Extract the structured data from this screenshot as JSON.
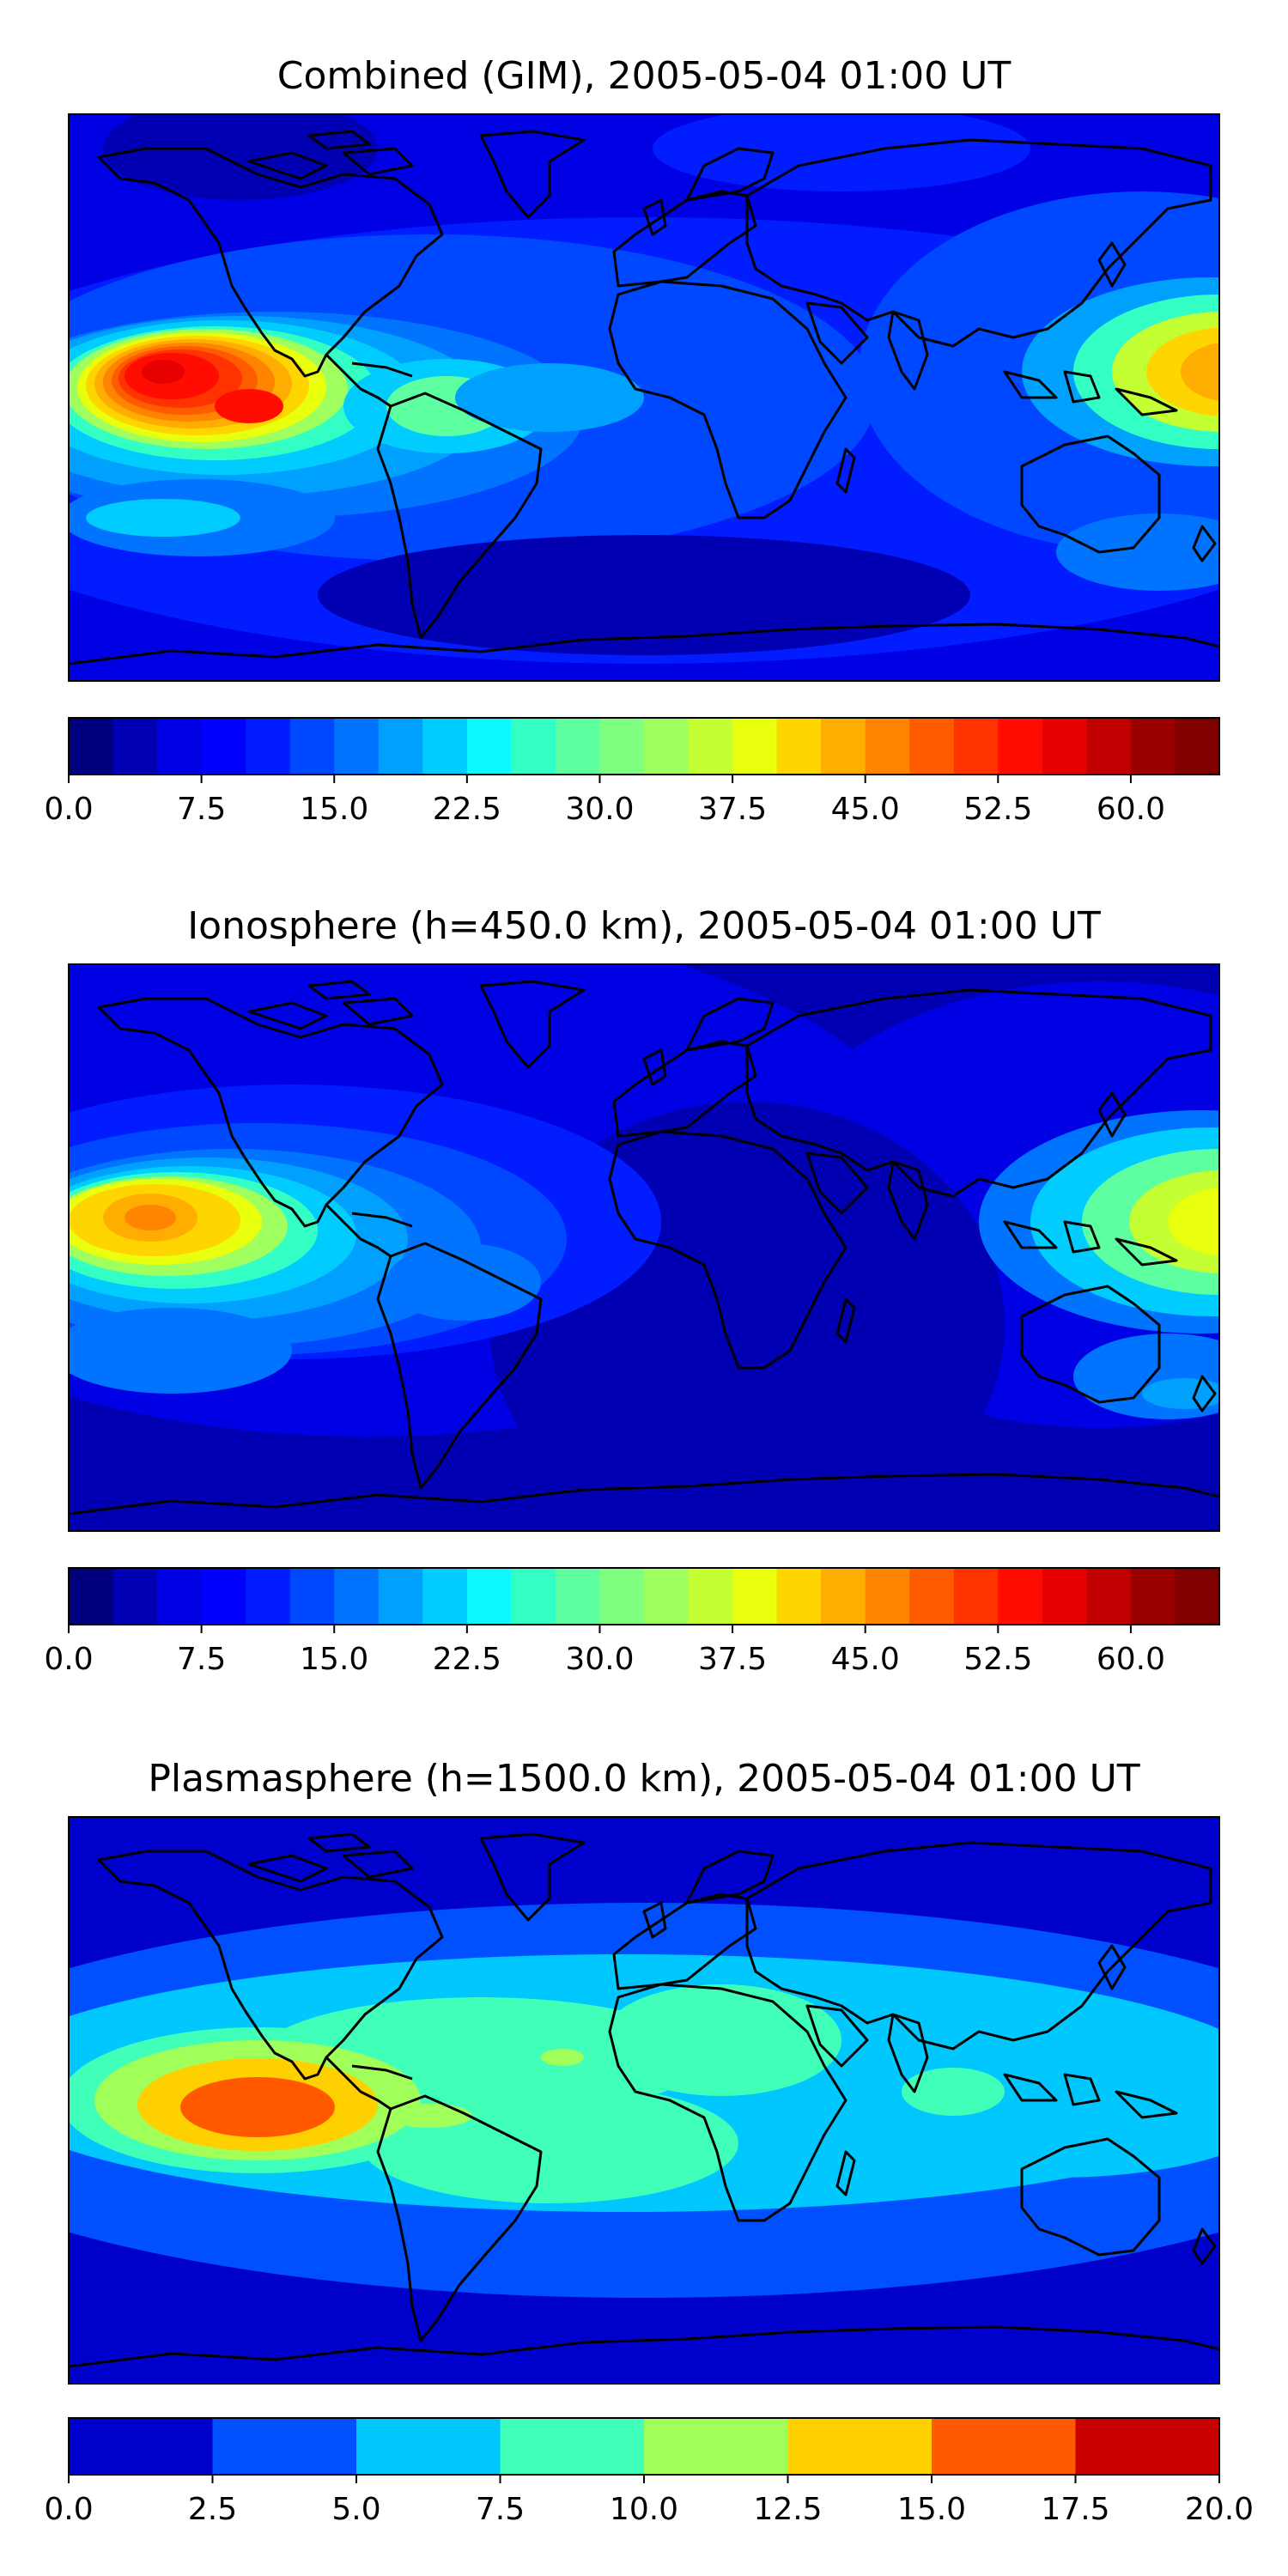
{
  "panels": [
    {
      "title": "Combined (GIM), 2005-05-04 01:00 UT",
      "colorbar": {
        "min": 0,
        "max": 65,
        "levels": 26,
        "ticks": [
          "0.0",
          "7.5",
          "15.0",
          "22.5",
          "30.0",
          "37.5",
          "45.0",
          "52.5",
          "60.0"
        ],
        "tick_values": [
          0,
          7.5,
          15,
          22.5,
          30,
          37.5,
          45,
          52.5,
          60
        ]
      }
    },
    {
      "title": "Ionosphere  (h=450.0 km), 2005-05-04 01:00 UT",
      "colorbar": {
        "min": 0,
        "max": 65,
        "levels": 26,
        "ticks": [
          "0.0",
          "7.5",
          "15.0",
          "22.5",
          "30.0",
          "37.5",
          "45.0",
          "52.5",
          "60.0"
        ],
        "tick_values": [
          0,
          7.5,
          15,
          22.5,
          30,
          37.5,
          45,
          52.5,
          60
        ]
      }
    },
    {
      "title": "Plasmasphere (h=1500.0 km), 2005-05-04 01:00 UT",
      "colorbar": {
        "min": 0,
        "max": 20,
        "levels": 8,
        "ticks": [
          "0.0",
          "2.5",
          "5.0",
          "7.5",
          "10.0",
          "12.5",
          "15.0",
          "17.5",
          "20.0"
        ],
        "tick_values": [
          0,
          2.5,
          5,
          7.5,
          10,
          12.5,
          15,
          17.5,
          20
        ]
      }
    }
  ],
  "colors": {
    "jet26": [
      "#00007f",
      "#0000b2",
      "#0000e5",
      "#0000ff",
      "#001cff",
      "#0048ff",
      "#0074ff",
      "#00a0ff",
      "#00ccff",
      "#0df8ff",
      "#33ffc4",
      "#5effa0",
      "#7fff7f",
      "#9fff5e",
      "#c4ff33",
      "#e8ff0d",
      "#ffd500",
      "#ffad00",
      "#ff8400",
      "#ff5c00",
      "#ff3300",
      "#ff0d00",
      "#e60000",
      "#c00000",
      "#9b0000",
      "#800000"
    ],
    "jet8": [
      "#0000cd",
      "#0050ff",
      "#00c8ff",
      "#40ffb8",
      "#a0ff58",
      "#ffd000",
      "#ff5a00",
      "#c80000"
    ],
    "coastline": "#000000"
  }
}
